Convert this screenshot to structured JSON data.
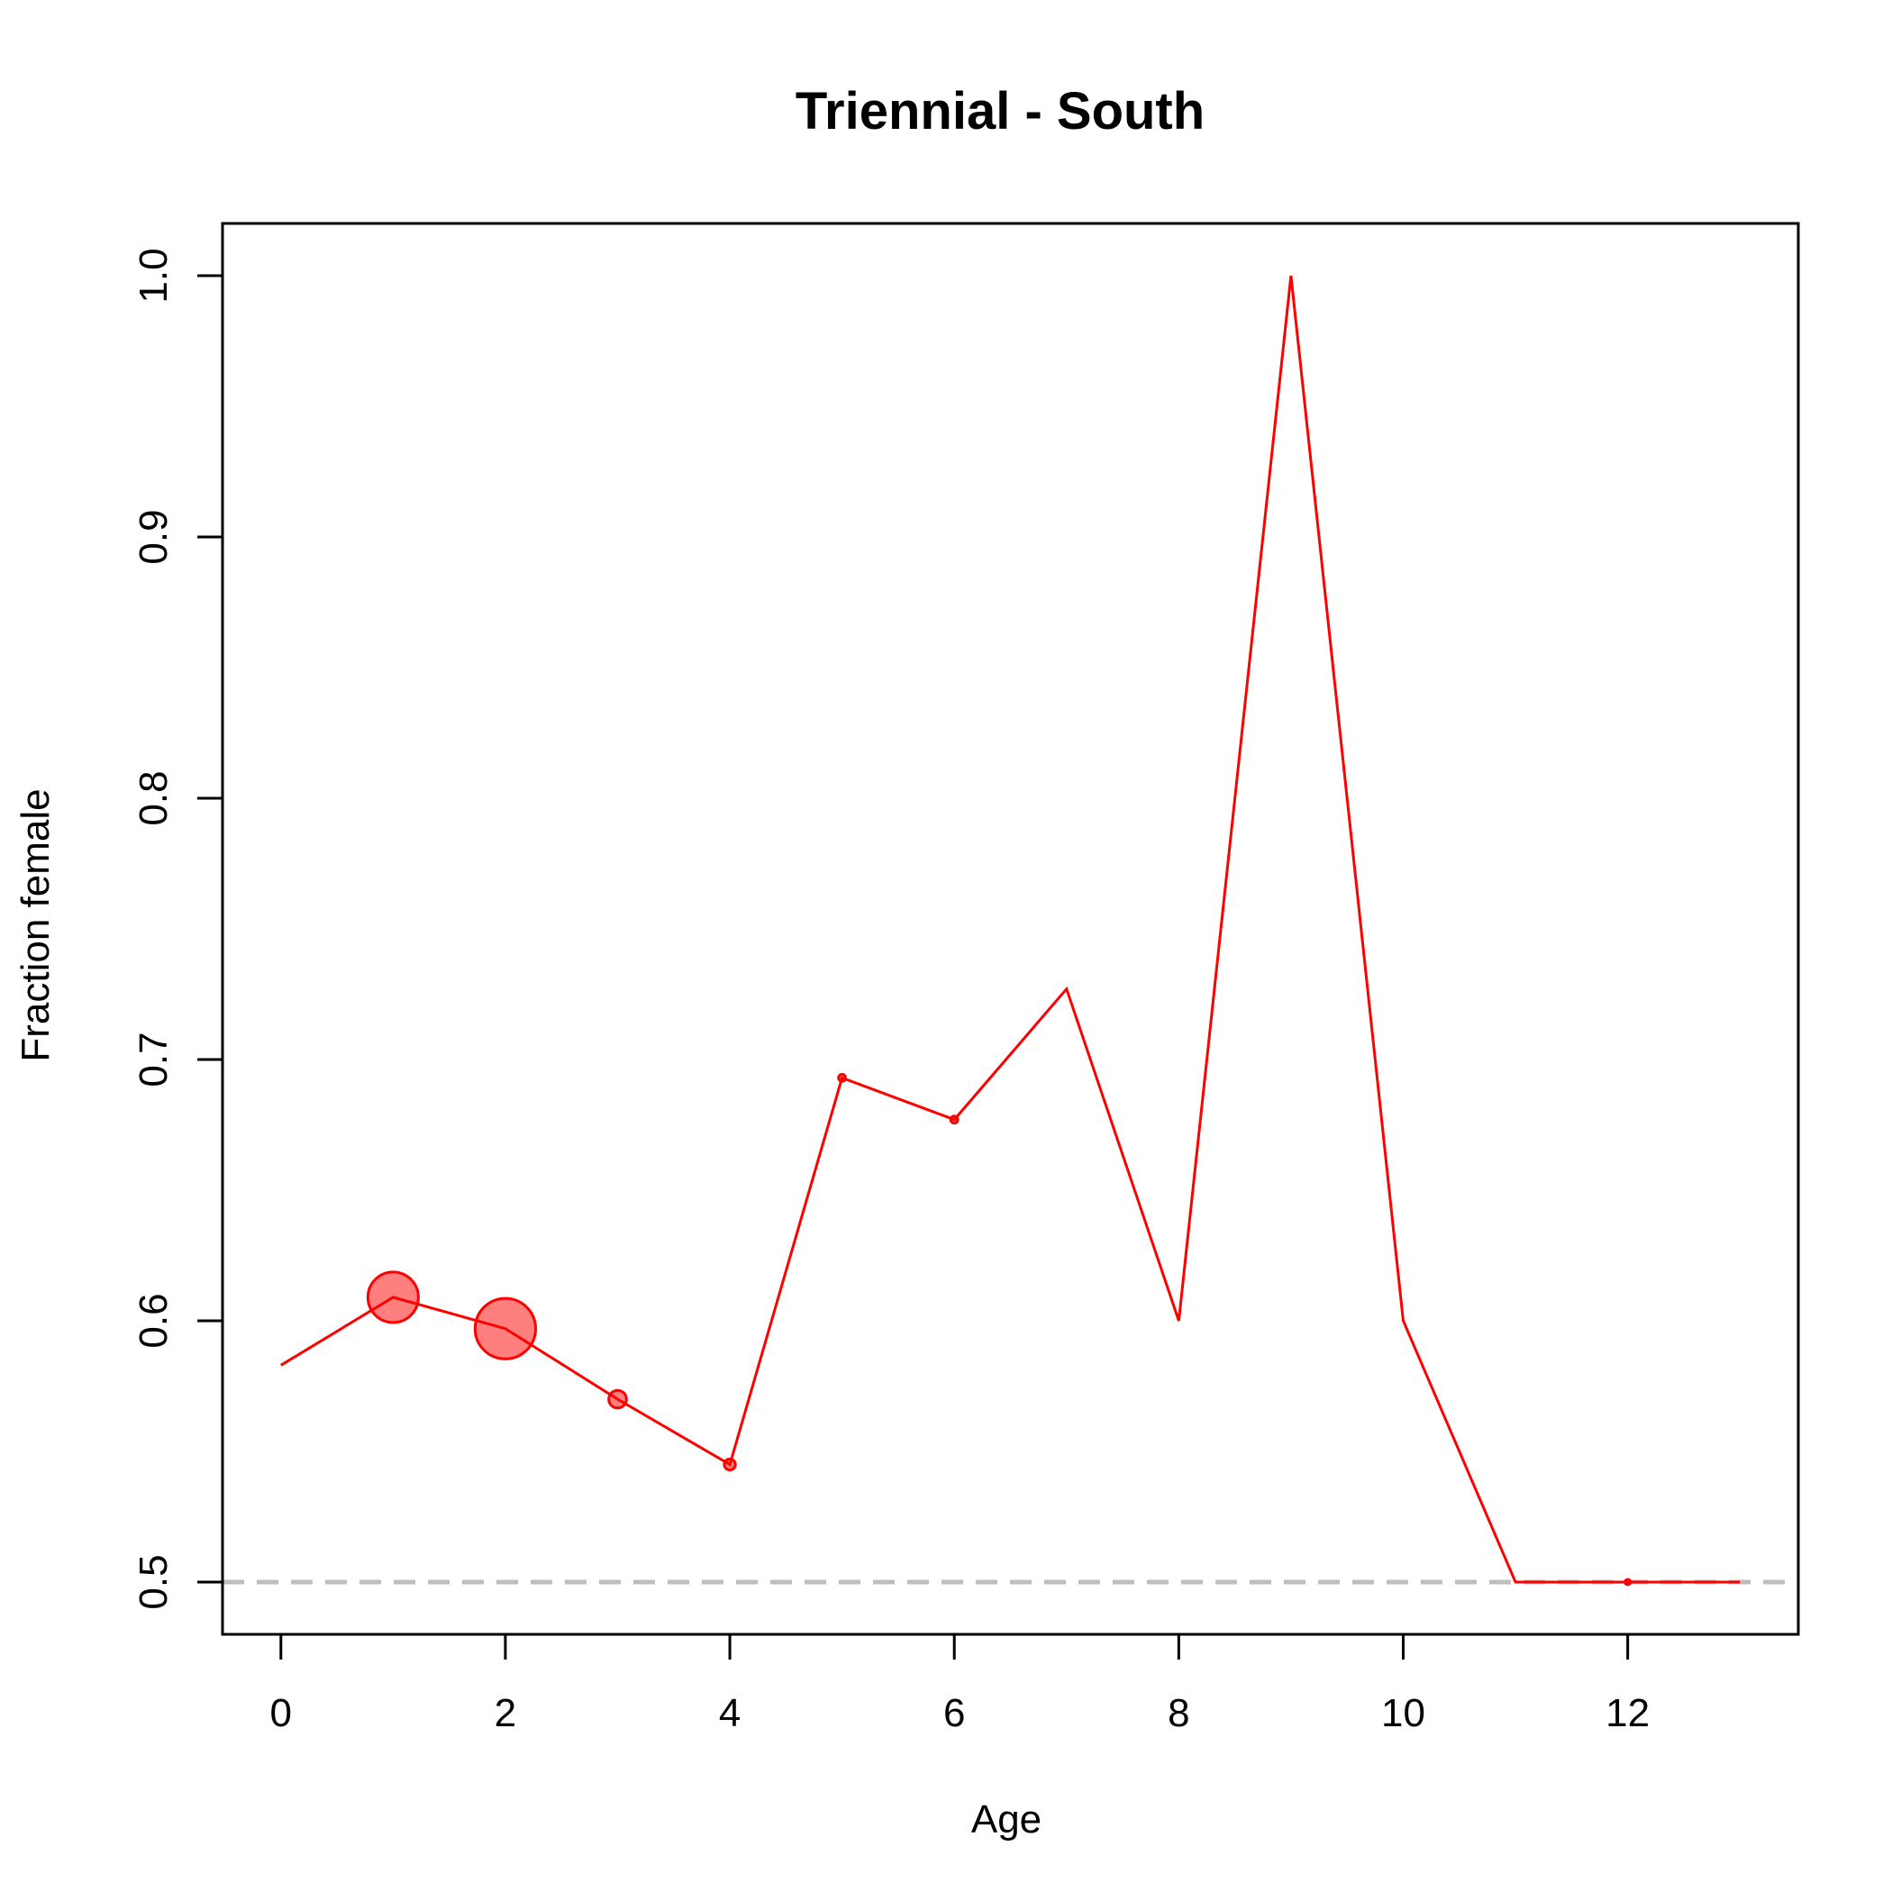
{
  "chart_data": {
    "type": "line",
    "title": "Triennial - South",
    "xlabel": "Age",
    "ylabel": "Fraction female",
    "xlim": [
      -0.52,
      13.52
    ],
    "ylim": [
      0.48,
      1.02
    ],
    "x_ticks": [
      0,
      2,
      4,
      6,
      8,
      10,
      12
    ],
    "y_ticks": [
      0.5,
      0.6,
      0.7,
      0.8,
      0.9,
      1.0
    ],
    "x_tick_labels": [
      "0",
      "2",
      "4",
      "6",
      "8",
      "10",
      "12"
    ],
    "y_tick_labels": [
      "0.5",
      "0.6",
      "0.7",
      "0.8",
      "0.9",
      "1.0"
    ],
    "grid": false,
    "legend": "none",
    "reference_line": {
      "y": 0.5,
      "style": "dashed",
      "color": "#BEBEBE"
    },
    "series": [
      {
        "color": "#FF0000",
        "marker_fill": "rgba(255,0,0,0.5)",
        "x": [
          0,
          1,
          2,
          3,
          4,
          5,
          6,
          7,
          8,
          9,
          10,
          11,
          12,
          13
        ],
        "y": [
          0.583,
          0.609,
          0.597,
          0.57,
          0.545,
          0.693,
          0.677,
          0.727,
          0.6,
          1.0,
          0.6,
          0.5,
          0.5,
          0.5
        ],
        "marker_size": [
          0,
          1.0,
          1.2,
          0.35,
          0.22,
          0.14,
          0.14,
          0,
          0,
          0,
          0,
          0,
          0.08,
          0
        ]
      }
    ]
  }
}
